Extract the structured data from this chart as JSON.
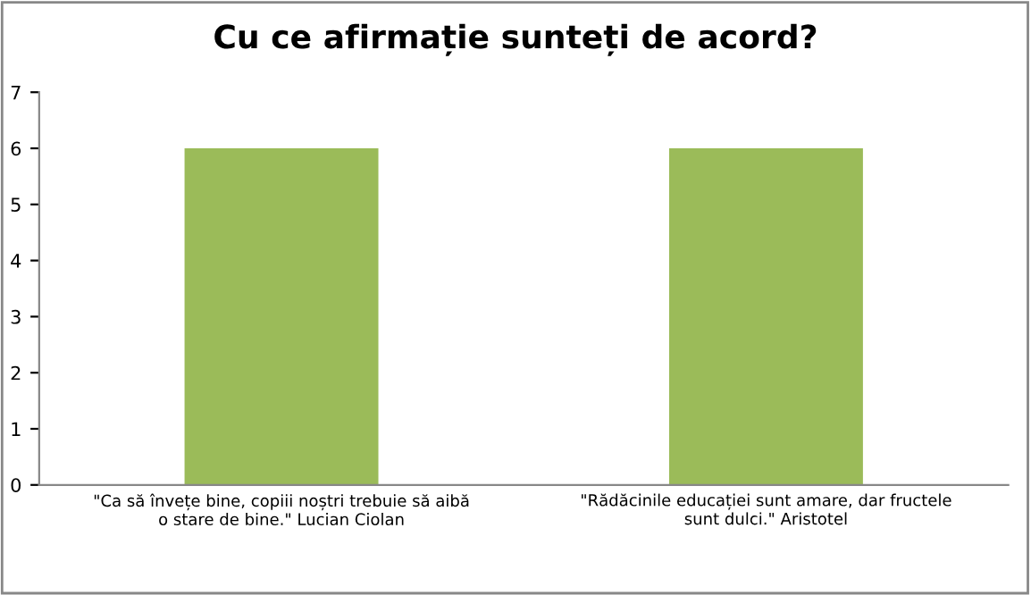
{
  "chart_data": {
    "type": "bar",
    "title": "Cu ce afirmație sunteți de acord?",
    "categories": [
      "\"Ca să învețe bine, copiii noștri trebuie să aibă o stare de bine.\" Lucian Ciolan",
      "\"Rădăcinile educației sunt amare, dar fructele sunt dulci.\" Aristotel"
    ],
    "values": [
      6,
      6
    ],
    "color": "#9bbb59",
    "ylim": [
      0,
      7
    ],
    "yticks": [
      0,
      1,
      2,
      3,
      4,
      5,
      6,
      7
    ],
    "grid": false,
    "legend": false
  }
}
